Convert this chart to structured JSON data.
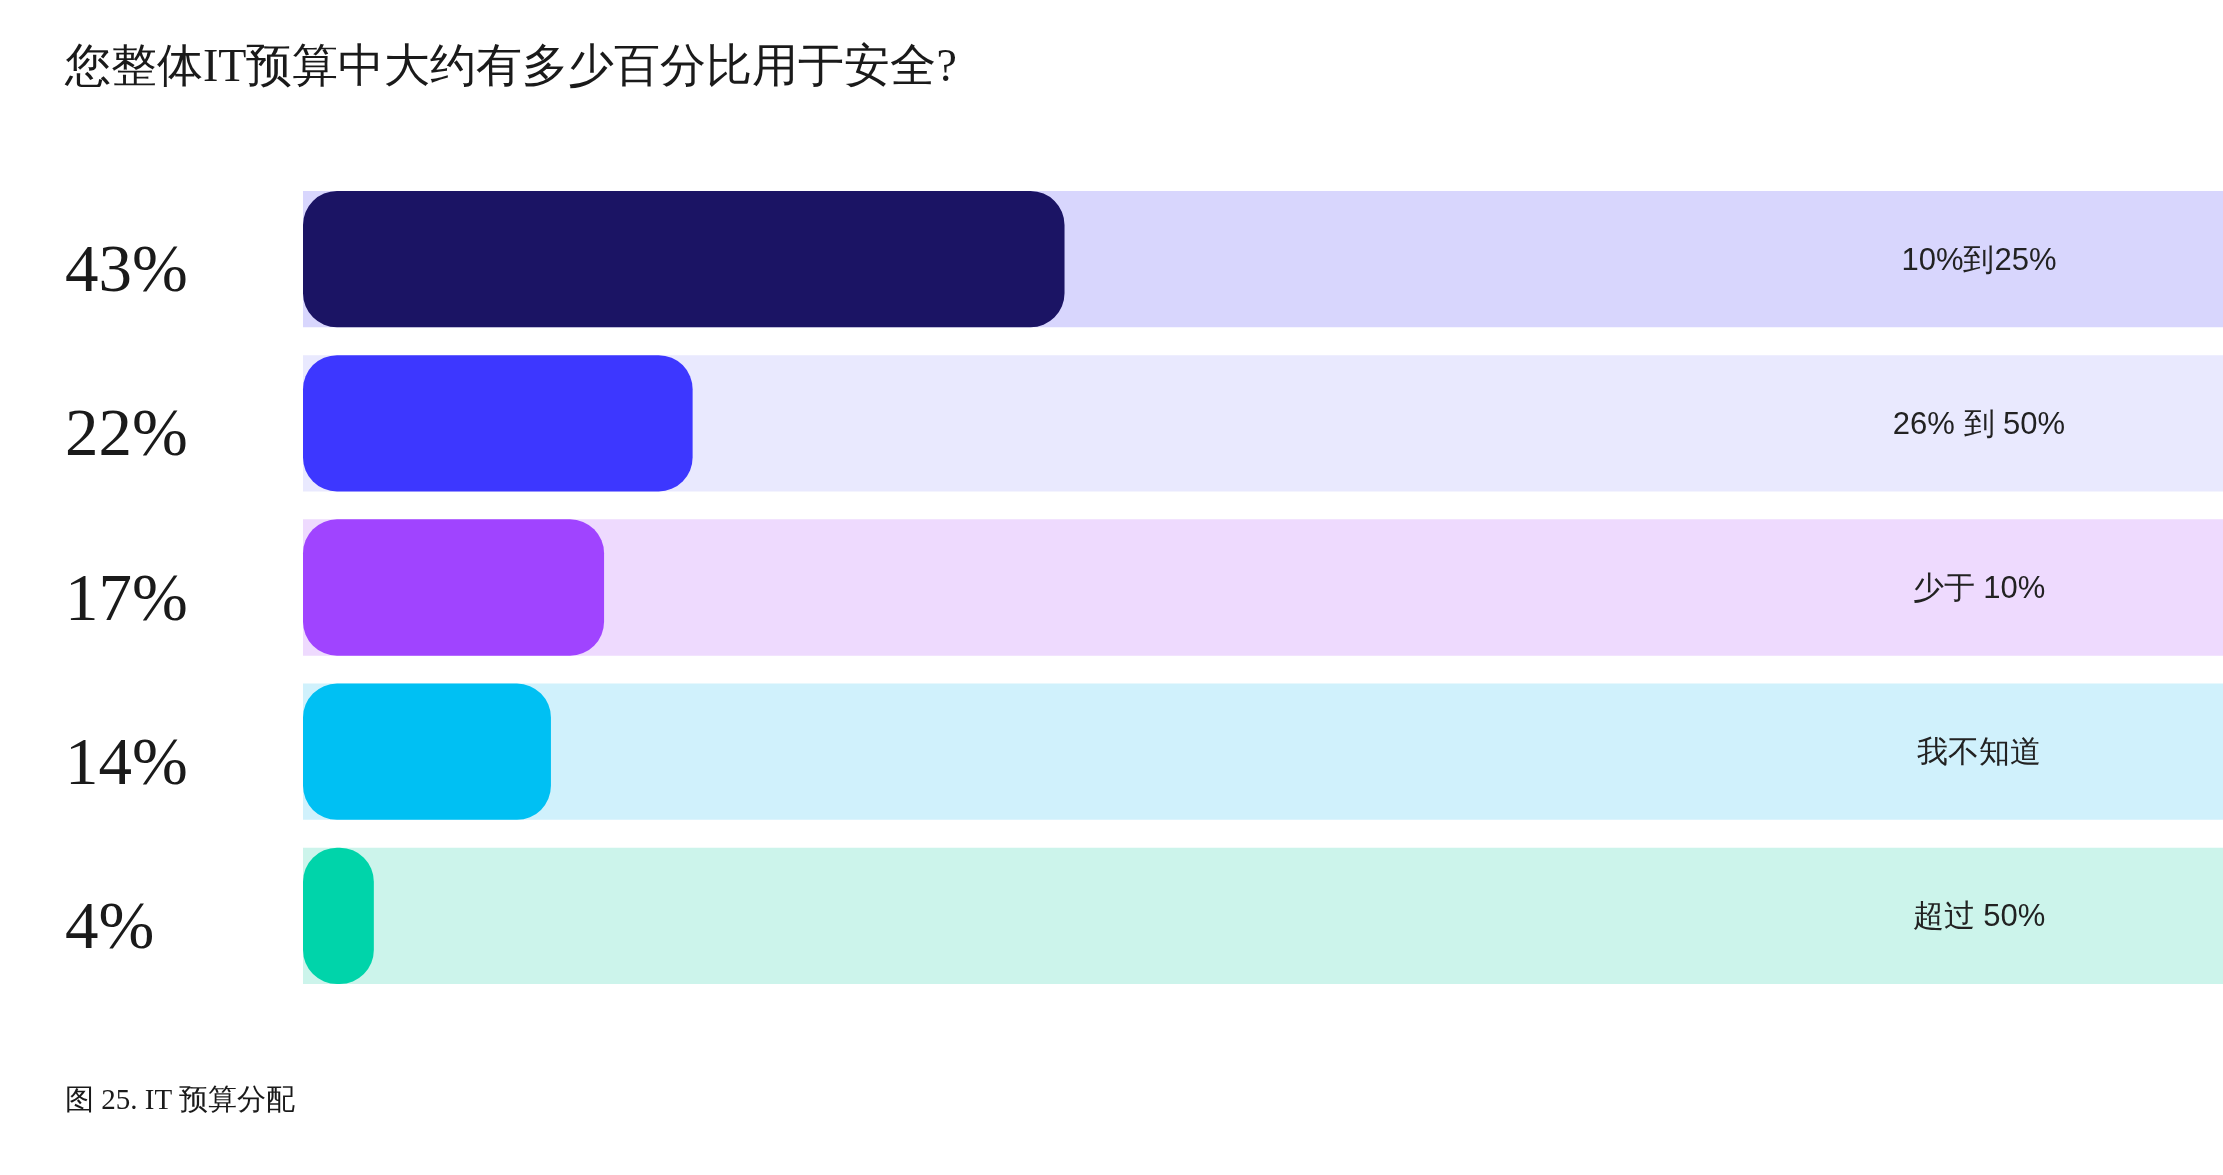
{
  "chart_data": {
    "type": "bar",
    "orientation": "horizontal",
    "title": "您整体IT预算中大约有多少百分比用于安全?",
    "categories": [
      "10%到25%",
      "26% 到 50%",
      "少于 10%",
      "我不知道",
      "超过 50%"
    ],
    "values": [
      43,
      22,
      17,
      14,
      4
    ],
    "colors": [
      "#1b1464",
      "#3d37ff",
      "#a044ff",
      "#00c0f3",
      "#00d4aa"
    ],
    "value_labels": [
      "43%",
      "22%",
      "17%",
      "14%",
      "4%"
    ],
    "bands": [
      {
        "axis": "y",
        "from": "10%到25%",
        "to": "10%到25%",
        "color": "#d8d6fd"
      },
      {
        "axis": "y",
        "from": "26% 到 50%",
        "to": "26% 到 50%",
        "color": "#e9e9fe"
      },
      {
        "axis": "y",
        "from": "少于 10%",
        "to": "少于 10%",
        "color": "#eedafe"
      },
      {
        "axis": "y",
        "from": "我不知道",
        "to": "我不知道",
        "color": "#d0f1fc"
      },
      {
        "axis": "y",
        "from": "超过 50%",
        "to": "超过 50%",
        "color": "#ccf4eb"
      }
    ],
    "tick_labels": "y",
    "annotations": [
      "图 25. IT 预算分配"
    ]
  }
}
